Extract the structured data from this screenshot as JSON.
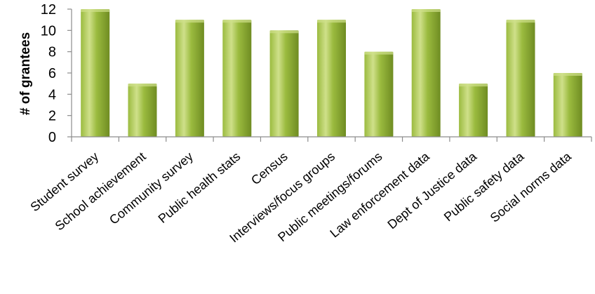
{
  "chart_data": {
    "type": "bar",
    "title": "",
    "xlabel": "",
    "ylabel": "# of grantees",
    "ylim": [
      0,
      12
    ],
    "yticks": [
      0,
      2,
      4,
      6,
      8,
      10,
      12
    ],
    "grid": false,
    "legend": "none",
    "categories": [
      "Student survey",
      "School achievement",
      "Community survey",
      "Public health stats",
      "Census",
      "Interviews/focus groups",
      "Public meetings/forums",
      "Law enforcement data",
      "Dept of Justice data",
      "Public safety data",
      "Social norms data"
    ],
    "values": [
      12,
      5,
      11,
      11,
      10,
      11,
      8,
      12,
      5,
      11,
      6
    ],
    "colors": {
      "bar_light": "#cfe08a",
      "bar_mid": "#9bbb3f",
      "bar_dark": "#6f8c22",
      "axis": "#8c8c8c"
    }
  }
}
